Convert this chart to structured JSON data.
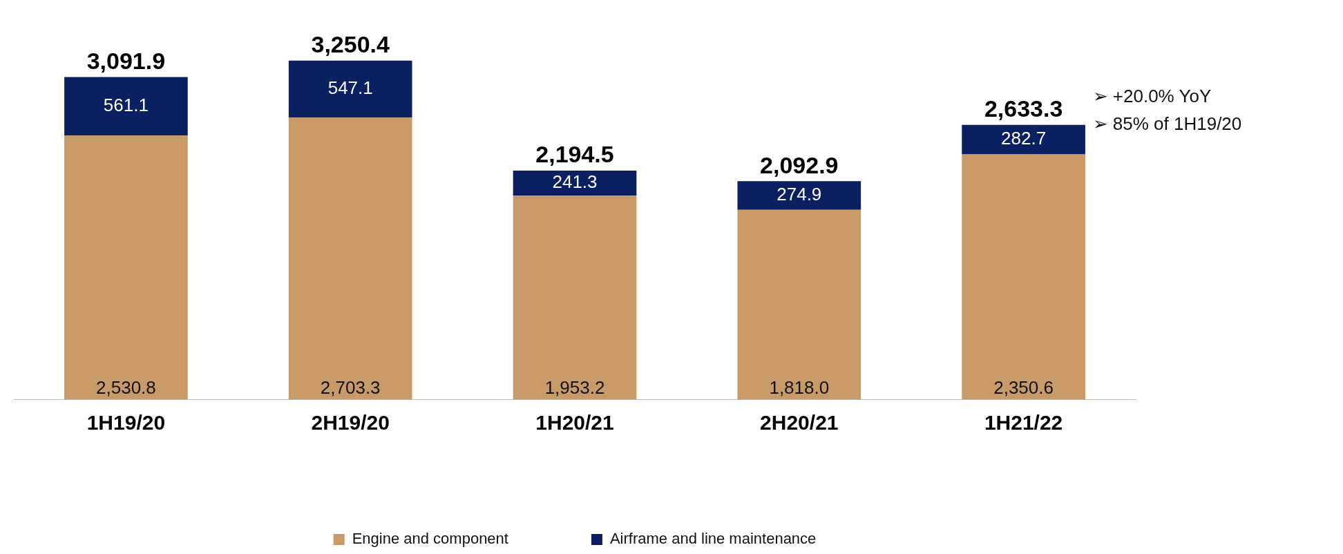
{
  "chart_data": {
    "type": "bar",
    "stacked": true,
    "categories": [
      "1H19/20",
      "2H19/20",
      "1H20/21",
      "2H20/21",
      "1H21/22"
    ],
    "series": [
      {
        "name": "Engine and component",
        "color": "#c89a68",
        "values": [
          2530.8,
          2703.3,
          1953.2,
          1818.0,
          2350.6
        ],
        "value_labels": [
          "2,530.8",
          "2,703.3",
          "1,953.2",
          "1,818.0",
          "2,350.6"
        ]
      },
      {
        "name": "Airframe and line maintenance",
        "color": "#0a2060",
        "values": [
          561.1,
          547.1,
          241.3,
          274.9,
          282.7
        ],
        "value_labels": [
          "561.1",
          "547.1",
          "241.3",
          "274.9",
          "282.7"
        ]
      }
    ],
    "totals": [
      "3,091.9",
      "3,250.4",
      "2,194.5",
      "2,092.9",
      "2,633.3"
    ],
    "annotations": [
      "➢ +20.0% YoY",
      "➢ 85% of 1H19/20"
    ],
    "legend": "bottom",
    "grid": false
  }
}
